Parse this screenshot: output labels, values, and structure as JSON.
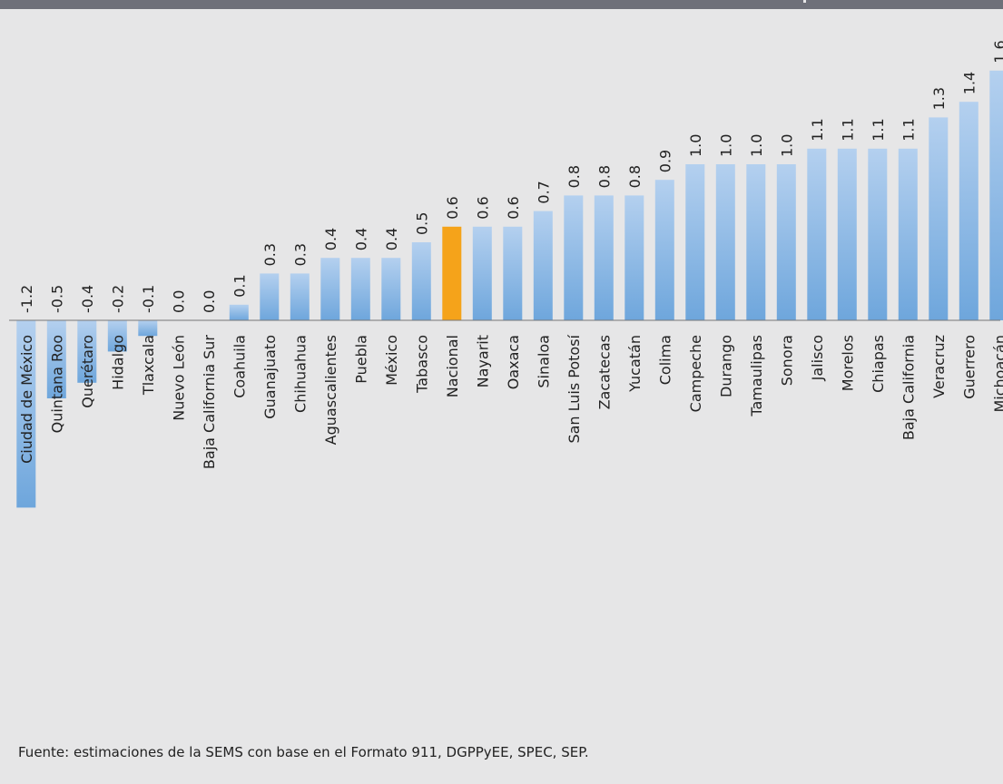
{
  "source": "Fuente: estimaciones de la SEMS con base en el Formato 911, DGPPyEE, SPEC, SEP.",
  "colors": {
    "background": "#e6e6e7",
    "header_band": "#6e7079",
    "bar_top": "#b4d0ef",
    "bar_bottom": "#6ea6dc",
    "highlight": "#f5a31a",
    "baseline": "#777777"
  },
  "chart_data": {
    "type": "bar",
    "orientation": "vertical",
    "label_rotation": "vertical",
    "highlight_category": "Nacional",
    "categories": [
      "Ciudad de México",
      "Quintana Roo",
      "Querétaro",
      "Hidalgo",
      "Tlaxcala",
      "Nuevo León",
      "Baja California Sur",
      "Coahuila",
      "Guanajuato",
      "Chihuahua",
      "Aguascalientes",
      "Puebla",
      "México",
      "Tabasco",
      "Nacional",
      "Nayarit",
      "Oaxaca",
      "Sinaloa",
      "San Luis Potosí",
      "Zacatecas",
      "Yucatán",
      "Colima",
      "Campeche",
      "Durango",
      "Tamaulipas",
      "Sonora",
      "Jalisco",
      "Morelos",
      "Chiapas",
      "Baja California",
      "Veracruz",
      "Guerrero",
      "Michoacán"
    ],
    "values": [
      -1.2,
      -0.5,
      -0.4,
      -0.2,
      -0.1,
      0.0,
      0.0,
      0.1,
      0.3,
      0.3,
      0.4,
      0.4,
      0.4,
      0.5,
      0.6,
      0.6,
      0.6,
      0.7,
      0.8,
      0.8,
      0.8,
      0.9,
      1.0,
      1.0,
      1.0,
      1.0,
      1.1,
      1.1,
      1.1,
      1.1,
      1.3,
      1.4,
      1.6
    ],
    "value_labels": [
      "-1.2",
      "-0.5",
      "-0.4",
      "-0.2",
      "-0.1",
      "0.0",
      "0.0",
      "0.1",
      "0.3",
      "0.3",
      "0.4",
      "0.4",
      "0.4",
      "0.5",
      "0.6",
      "0.6",
      "0.6",
      "0.7",
      "0.8",
      "0.8",
      "0.8",
      "0.9",
      "1.0",
      "1.0",
      "1.0",
      "1.0",
      "1.1",
      "1.1",
      "1.1",
      "1.1",
      "1.3",
      "1.4",
      "1.6"
    ],
    "ylim": [
      -1.2,
      1.6
    ],
    "grid": false,
    "legend": "none"
  }
}
